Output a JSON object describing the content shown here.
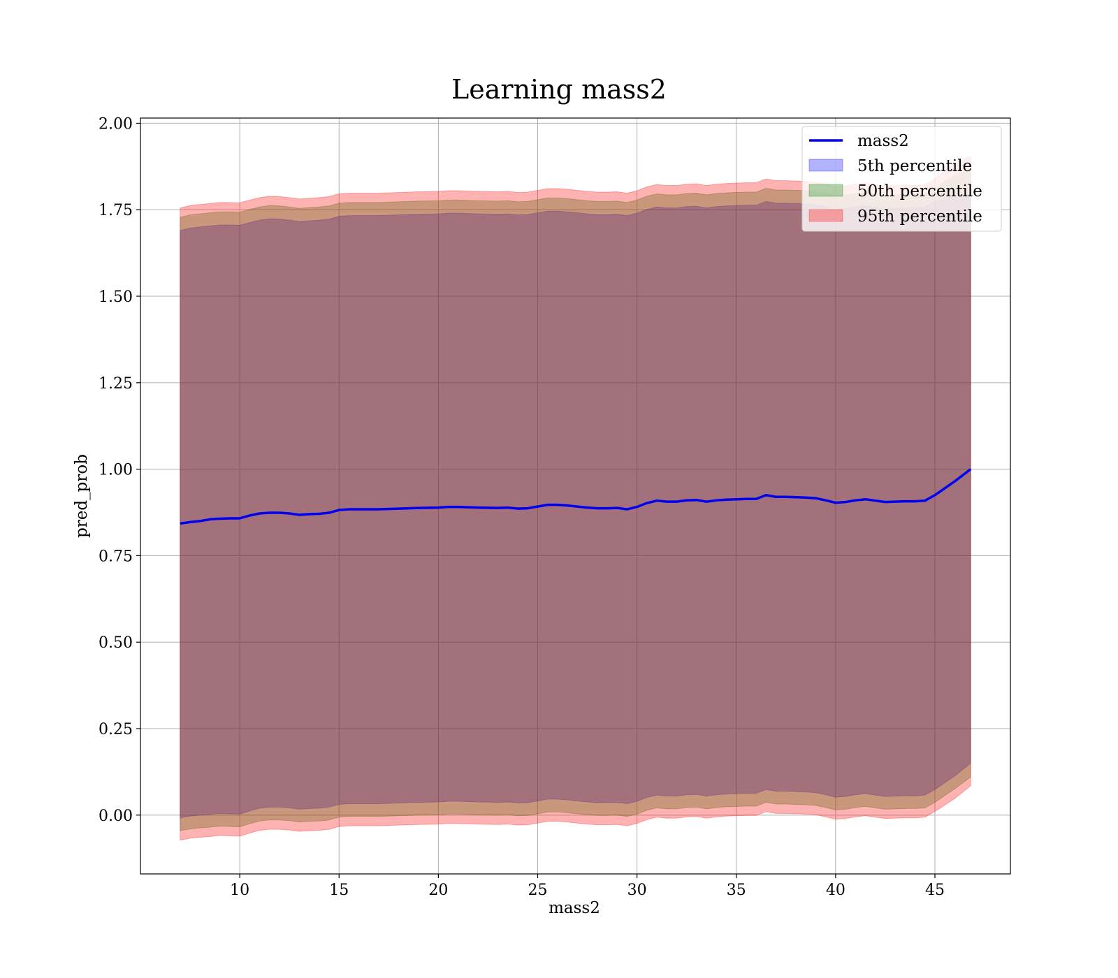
{
  "chart_data": {
    "type": "line",
    "title": "Learning mass2",
    "xlabel": "mass2",
    "ylabel": "pred_prob",
    "xlim": [
      5.0,
      48.8
    ],
    "ylim": [
      -0.17,
      2.015
    ],
    "xticks": [
      10,
      15,
      20,
      25,
      30,
      35,
      40,
      45
    ],
    "yticks": [
      0.0,
      0.25,
      0.5,
      0.75,
      1.0,
      1.25,
      1.5,
      1.75,
      2.0
    ],
    "ytick_labels": [
      "0.00",
      "0.25",
      "0.50",
      "0.75",
      "1.00",
      "1.25",
      "1.50",
      "1.75",
      "2.00"
    ],
    "grid": true,
    "legend_position": "upper right",
    "legend": [
      "mass2",
      "5th percentile",
      "50th percentile",
      "95th percentile"
    ],
    "colors": {
      "line": "#0000ee",
      "band_5": "#0000ff",
      "band_50": "#008000",
      "band_95": "#ff0000"
    },
    "x": [
      7.0,
      7.5,
      8.0,
      8.5,
      9.0,
      9.5,
      10.0,
      10.5,
      11.0,
      11.5,
      12.0,
      12.5,
      13.0,
      13.5,
      14.0,
      14.5,
      15.0,
      15.5,
      16.0,
      17.0,
      18.0,
      19.0,
      20.0,
      20.5,
      21.0,
      22.0,
      23.0,
      23.5,
      24.0,
      24.5,
      25.0,
      25.5,
      26.0,
      26.5,
      27.0,
      27.5,
      28.0,
      28.5,
      29.0,
      29.5,
      30.0,
      30.5,
      31.0,
      31.5,
      32.0,
      32.5,
      33.0,
      33.5,
      34.0,
      34.5,
      35.0,
      35.5,
      36.0,
      36.5,
      37.0,
      37.5,
      38.0,
      38.5,
      39.0,
      39.5,
      40.0,
      40.5,
      41.0,
      41.5,
      42.0,
      42.5,
      43.0,
      43.5,
      44.0,
      44.5,
      45.0,
      46.0,
      46.8
    ],
    "series": [
      {
        "name": "mass2",
        "values": [
          0.843,
          0.847,
          0.85,
          0.855,
          0.857,
          0.858,
          0.858,
          0.866,
          0.872,
          0.874,
          0.874,
          0.872,
          0.868,
          0.87,
          0.871,
          0.874,
          0.882,
          0.884,
          0.884,
          0.884,
          0.886,
          0.888,
          0.889,
          0.891,
          0.891,
          0.889,
          0.888,
          0.889,
          0.886,
          0.887,
          0.892,
          0.897,
          0.897,
          0.895,
          0.892,
          0.889,
          0.887,
          0.887,
          0.888,
          0.884,
          0.891,
          0.902,
          0.909,
          0.906,
          0.906,
          0.91,
          0.911,
          0.906,
          0.91,
          0.912,
          0.913,
          0.914,
          0.914,
          0.925,
          0.92,
          0.92,
          0.919,
          0.918,
          0.916,
          0.91,
          0.903,
          0.905,
          0.91,
          0.913,
          0.909,
          0.905,
          0.906,
          0.907,
          0.907,
          0.909,
          0.925,
          0.965,
          1.0
        ]
      },
      {
        "name": "5th percentile",
        "upper": [
          1.69,
          1.697,
          1.7,
          1.703,
          1.706,
          1.706,
          1.705,
          1.713,
          1.72,
          1.724,
          1.723,
          1.72,
          1.716,
          1.718,
          1.72,
          1.723,
          1.731,
          1.733,
          1.733,
          1.733,
          1.735,
          1.737,
          1.738,
          1.74,
          1.74,
          1.738,
          1.737,
          1.738,
          1.735,
          1.736,
          1.741,
          1.746,
          1.746,
          1.744,
          1.741,
          1.738,
          1.736,
          1.736,
          1.737,
          1.733,
          1.74,
          1.751,
          1.758,
          1.755,
          1.755,
          1.759,
          1.76,
          1.755,
          1.759,
          1.761,
          1.762,
          1.763,
          1.763,
          1.774,
          1.769,
          1.769,
          1.768,
          1.767,
          1.765,
          1.759,
          1.752,
          1.754,
          1.759,
          1.762,
          1.758,
          1.754,
          1.755,
          1.756,
          1.756,
          1.758,
          1.774,
          1.79,
          1.795
        ],
        "lower": [
          -0.008,
          -0.003,
          0.0,
          0.002,
          0.005,
          0.004,
          0.003,
          0.012,
          0.02,
          0.023,
          0.023,
          0.021,
          0.017,
          0.019,
          0.02,
          0.023,
          0.031,
          0.033,
          0.033,
          0.033,
          0.035,
          0.037,
          0.038,
          0.04,
          0.04,
          0.038,
          0.037,
          0.038,
          0.035,
          0.036,
          0.041,
          0.046,
          0.046,
          0.044,
          0.041,
          0.038,
          0.036,
          0.036,
          0.037,
          0.033,
          0.04,
          0.051,
          0.058,
          0.055,
          0.055,
          0.059,
          0.06,
          0.055,
          0.059,
          0.061,
          0.062,
          0.063,
          0.063,
          0.074,
          0.069,
          0.069,
          0.068,
          0.067,
          0.065,
          0.059,
          0.052,
          0.054,
          0.059,
          0.062,
          0.058,
          0.054,
          0.055,
          0.056,
          0.056,
          0.058,
          0.074,
          0.113,
          0.15
        ]
      },
      {
        "name": "50th percentile",
        "upper": [
          1.728,
          1.735,
          1.738,
          1.741,
          1.744,
          1.744,
          1.743,
          1.751,
          1.758,
          1.762,
          1.761,
          1.758,
          1.754,
          1.756,
          1.758,
          1.761,
          1.769,
          1.771,
          1.771,
          1.771,
          1.773,
          1.775,
          1.776,
          1.778,
          1.778,
          1.776,
          1.775,
          1.776,
          1.773,
          1.774,
          1.779,
          1.784,
          1.784,
          1.782,
          1.779,
          1.776,
          1.774,
          1.774,
          1.775,
          1.771,
          1.778,
          1.789,
          1.796,
          1.793,
          1.793,
          1.797,
          1.798,
          1.793,
          1.797,
          1.799,
          1.8,
          1.801,
          1.801,
          1.812,
          1.807,
          1.807,
          1.806,
          1.805,
          1.803,
          1.797,
          1.79,
          1.792,
          1.797,
          1.8,
          1.796,
          1.792,
          1.793,
          1.794,
          1.794,
          1.796,
          1.812,
          1.85,
          1.865
        ],
        "lower": [
          -0.045,
          -0.04,
          -0.037,
          -0.035,
          -0.032,
          -0.033,
          -0.034,
          -0.025,
          -0.017,
          -0.014,
          -0.014,
          -0.016,
          -0.02,
          -0.018,
          -0.017,
          -0.014,
          -0.006,
          -0.004,
          -0.004,
          -0.004,
          -0.002,
          0.0,
          0.001,
          0.003,
          0.003,
          0.001,
          0.0,
          0.001,
          -0.002,
          -0.001,
          0.004,
          0.009,
          0.009,
          0.007,
          0.004,
          0.001,
          -0.001,
          -0.001,
          0.0,
          -0.004,
          0.003,
          0.014,
          0.021,
          0.018,
          0.018,
          0.022,
          0.023,
          0.018,
          0.022,
          0.024,
          0.025,
          0.026,
          0.026,
          0.037,
          0.032,
          0.032,
          0.031,
          0.03,
          0.028,
          0.022,
          0.015,
          0.017,
          0.022,
          0.025,
          0.021,
          0.017,
          0.018,
          0.019,
          0.019,
          0.021,
          0.037,
          0.076,
          0.11
        ]
      },
      {
        "name": "95th percentile",
        "upper": [
          1.755,
          1.762,
          1.765,
          1.768,
          1.771,
          1.771,
          1.77,
          1.778,
          1.785,
          1.789,
          1.788,
          1.785,
          1.781,
          1.783,
          1.785,
          1.788,
          1.796,
          1.798,
          1.798,
          1.798,
          1.8,
          1.802,
          1.803,
          1.805,
          1.805,
          1.803,
          1.802,
          1.803,
          1.8,
          1.801,
          1.806,
          1.811,
          1.811,
          1.809,
          1.806,
          1.803,
          1.801,
          1.801,
          1.802,
          1.798,
          1.805,
          1.816,
          1.823,
          1.82,
          1.82,
          1.824,
          1.825,
          1.82,
          1.824,
          1.826,
          1.827,
          1.828,
          1.828,
          1.839,
          1.834,
          1.834,
          1.833,
          1.832,
          1.83,
          1.824,
          1.817,
          1.819,
          1.824,
          1.827,
          1.823,
          1.819,
          1.82,
          1.821,
          1.821,
          1.823,
          1.84,
          1.885,
          1.905
        ],
        "lower": [
          -0.072,
          -0.067,
          -0.064,
          -0.062,
          -0.059,
          -0.06,
          -0.061,
          -0.052,
          -0.044,
          -0.041,
          -0.041,
          -0.043,
          -0.047,
          -0.045,
          -0.044,
          -0.041,
          -0.033,
          -0.031,
          -0.031,
          -0.031,
          -0.029,
          -0.027,
          -0.026,
          -0.024,
          -0.024,
          -0.026,
          -0.027,
          -0.026,
          -0.029,
          -0.028,
          -0.023,
          -0.018,
          -0.018,
          -0.02,
          -0.023,
          -0.026,
          -0.028,
          -0.028,
          -0.027,
          -0.031,
          -0.024,
          -0.013,
          -0.006,
          -0.009,
          -0.009,
          -0.005,
          -0.004,
          -0.009,
          -0.005,
          -0.003,
          -0.002,
          -0.001,
          -0.001,
          0.01,
          0.005,
          0.005,
          0.004,
          0.003,
          0.001,
          -0.005,
          -0.012,
          -0.01,
          -0.005,
          -0.002,
          -0.006,
          -0.01,
          -0.009,
          -0.008,
          -0.008,
          -0.006,
          0.01,
          0.048,
          0.085
        ]
      }
    ]
  }
}
